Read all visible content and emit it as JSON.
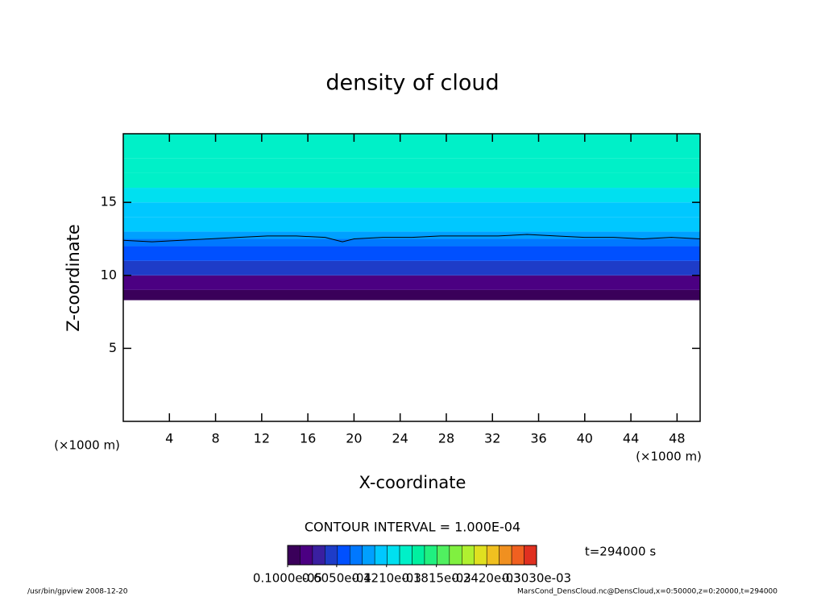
{
  "chart_data": {
    "type": "contour",
    "title": "density of cloud",
    "x_label": "X-coordinate",
    "y_label": "Z-coordinate",
    "x_unit": "(×1000 m)",
    "y_unit": "(×1000 m)",
    "xlim": [
      0,
      50
    ],
    "xticks": [
      4,
      8,
      12,
      16,
      20,
      24,
      28,
      32,
      36,
      40,
      44,
      48
    ],
    "ylim": [
      0,
      19.7
    ],
    "yticks": [
      5,
      10,
      15
    ],
    "profile": {
      "z": [
        8.3,
        9,
        10,
        11,
        12,
        12.5,
        13,
        14,
        15,
        16,
        17,
        18,
        19.7
      ],
      "values": [
        1e-05,
        3e-05,
        5e-05,
        7e-05,
        9e-05,
        0.0001,
        0.00011,
        0.00012,
        0.00013,
        0.00014,
        0.000145,
        0.00015,
        0.00015
      ]
    },
    "contour": {
      "x": [
        0,
        2.5,
        5,
        7.5,
        10,
        12.5,
        15,
        17.5,
        19,
        20,
        22.5,
        25,
        27.5,
        30,
        32.5,
        35,
        37.5,
        40,
        42.5,
        45,
        47.5,
        50
      ],
      "z": [
        12.4,
        12.3,
        12.4,
        12.5,
        12.6,
        12.7,
        12.7,
        12.6,
        12.3,
        12.5,
        12.6,
        12.6,
        12.7,
        12.7,
        12.7,
        12.8,
        12.7,
        12.6,
        12.6,
        12.5,
        12.6,
        12.5
      ]
    },
    "contour_interval": "CONTOUR INTERVAL = 1.000E-04",
    "time_label": "t=294000 s",
    "colorbar": {
      "range": [
        1e-06,
        0.000303
      ],
      "colors": [
        "#3a005a",
        "#4b0082",
        "#3a1fa0",
        "#1e3cc8",
        "#0050ff",
        "#0078ff",
        "#00a0ff",
        "#00c8ff",
        "#00e0f0",
        "#00f0c8",
        "#00f0a0",
        "#20f080",
        "#50f060",
        "#80f040",
        "#b0f030",
        "#e0e020",
        "#f0c020",
        "#f09020",
        "#f06020",
        "#e03020"
      ],
      "ticks": [
        {
          "value": 1e-06,
          "label": "0.1000e-05"
        },
        {
          "value": 6.05e-05,
          "label": "0.6050e-04"
        },
        {
          "value": 0.000121,
          "label": "0.1210e-03"
        },
        {
          "value": 0.0001815,
          "label": "0.1815e-03"
        },
        {
          "value": 0.000242,
          "label": "0.2420e-03"
        },
        {
          "value": 0.000303,
          "label": "0.3030e-03"
        }
      ]
    },
    "footer_left": "/usr/bin/gpview  2008-12-20",
    "footer_right": "MarsCond_DensCloud.nc@DensCloud,x=0:50000,z=0:20000,t=294000"
  }
}
